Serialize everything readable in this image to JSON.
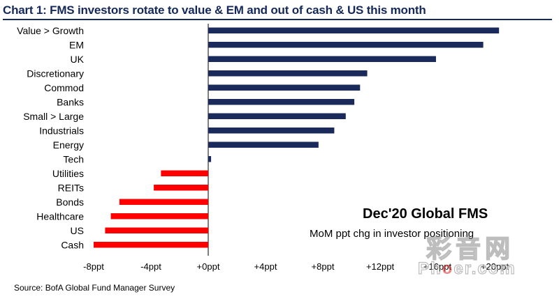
{
  "chart_data": {
    "type": "bar",
    "orientation": "horizontal",
    "title": "Chart 1: FMS investors rotate to value & EM and out of cash & US this month",
    "annotation_title": "Dec'20 Global FMS",
    "annotation_subtitle": "MoM ppt chg in investor positioning",
    "source": "Source:  BofA Global Fund Manager Survey",
    "categories": [
      "Value > Growth",
      "EM",
      "UK",
      "Discretionary",
      "Commod",
      "Banks",
      "Small > Large",
      "Industrials",
      "Energy",
      "Tech",
      "Utilities",
      "REITs",
      "Bonds",
      "Healthcare",
      "US",
      "Cash"
    ],
    "values": [
      20.3,
      19.2,
      15.9,
      11.1,
      10.6,
      10.2,
      9.6,
      8.8,
      7.7,
      0.2,
      -3.3,
      -3.8,
      -6.2,
      -6.8,
      -7.2,
      -8.0
    ],
    "positive_color": "#1a2a5a",
    "negative_color": "#ff0000",
    "xlim": [
      -8,
      20
    ],
    "ticks": [
      -8,
      -4,
      0,
      4,
      8,
      12,
      16,
      20
    ],
    "tick_labels": [
      "-8ppt",
      "-4ppt",
      "+0ppt",
      "+4ppt",
      "+8ppt",
      "+12ppt",
      "+16ppt",
      "+20ppt"
    ]
  },
  "watermark": {
    "cn": "彩音网",
    "en_before": "Ph",
    "en_dot": "o",
    "en_after": "er.com"
  }
}
